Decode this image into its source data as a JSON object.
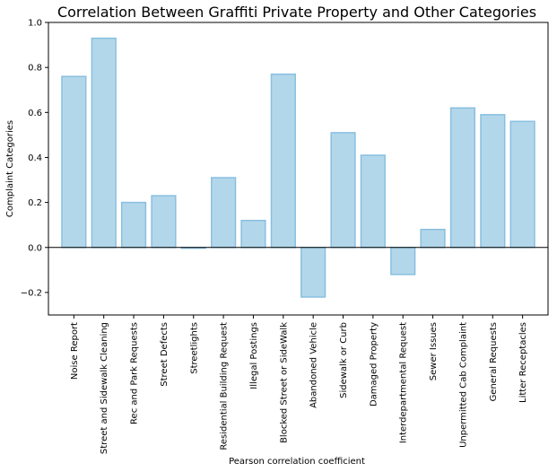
{
  "chart_data": {
    "type": "bar",
    "title": "Correlation Between Graffiti Private Property and Other Categories",
    "xlabel": "Pearson correlation coefficient",
    "ylabel": "Complaint Categories",
    "categories": [
      "Noise Report",
      "Street and Sidewalk Cleaning",
      "Rec and Park Requests",
      "Street Defects",
      "Streetlights",
      "Residential Building Request",
      "Illegal Postings",
      "Blocked Street or SideWalk",
      "Abandoned Vehicle",
      "Sidewalk or Curb",
      "Damaged Property",
      "Interdepartmental Request",
      "Sewer Issues",
      "Unpermitted Cab Complaint",
      "General Requests",
      "Litter Receptacles"
    ],
    "values": [
      0.76,
      0.93,
      0.2,
      0.23,
      0.0,
      0.31,
      0.12,
      0.77,
      -0.22,
      0.51,
      0.41,
      -0.12,
      0.08,
      0.62,
      0.59,
      0.56
    ],
    "ylim": [
      -0.3,
      1.0
    ],
    "yticks": [
      -0.2,
      0.0,
      0.2,
      0.4,
      0.6,
      0.8,
      1.0
    ],
    "ytick_labels": [
      "−0.2",
      "0.0",
      "0.2",
      "0.4",
      "0.6",
      "0.8",
      "1.0"
    ],
    "grid": false,
    "bar_fill": "#b3d7ea",
    "bar_edge": "#88bfe0",
    "zero_line": true
  }
}
